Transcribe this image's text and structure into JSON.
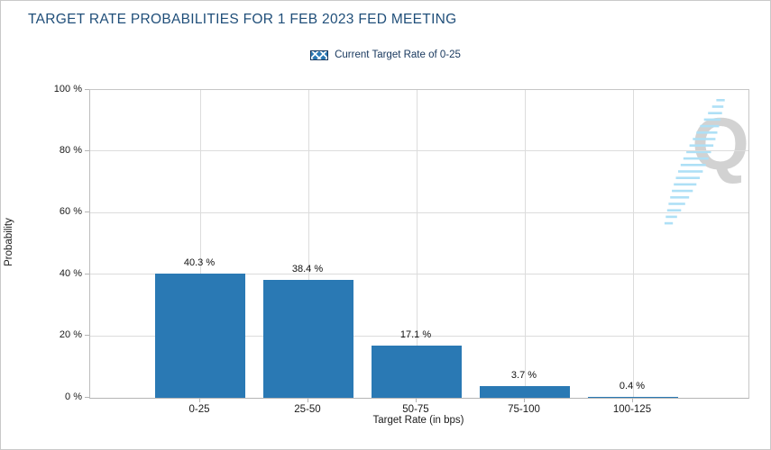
{
  "title": "TARGET RATE PROBABILITIES FOR 1 FEB 2023 FED MEETING",
  "legend": {
    "label": "Current Target Rate of 0-25"
  },
  "watermark": {
    "letter": "Q"
  },
  "colors": {
    "bar": "#2a79b4",
    "title_text": "#1f4e79",
    "legend_text": "#17375d",
    "gridline": "#dcdcdc",
    "watermark_letter": "#d2d2d2",
    "watermark_swoosh": "#aee0f6"
  },
  "chart_data": {
    "type": "bar",
    "title": "TARGET RATE PROBABILITIES FOR 1 FEB 2023 FED MEETING",
    "categories": [
      "0-25",
      "25-50",
      "50-75",
      "75-100",
      "100-125"
    ],
    "values": [
      40.3,
      38.4,
      17.1,
      3.7,
      0.4
    ],
    "value_labels": [
      "40.3 %",
      "38.4 %",
      "17.1 %",
      "3.7 %",
      "0.4 %"
    ],
    "highlight_category": "0-25",
    "highlight_style": "crosshatch",
    "xlabel": "Target Rate (in bps)",
    "ylabel": "Probability",
    "ylim": [
      0,
      100
    ],
    "yticks": [
      0,
      20,
      40,
      60,
      80,
      100
    ],
    "ytick_labels": [
      "0 %",
      "20 %",
      "40 %",
      "60 %",
      "80 %",
      "100 %"
    ],
    "legend": [
      "Current Target Rate of 0-25"
    ],
    "legend_position": "top-center",
    "grid": true
  }
}
